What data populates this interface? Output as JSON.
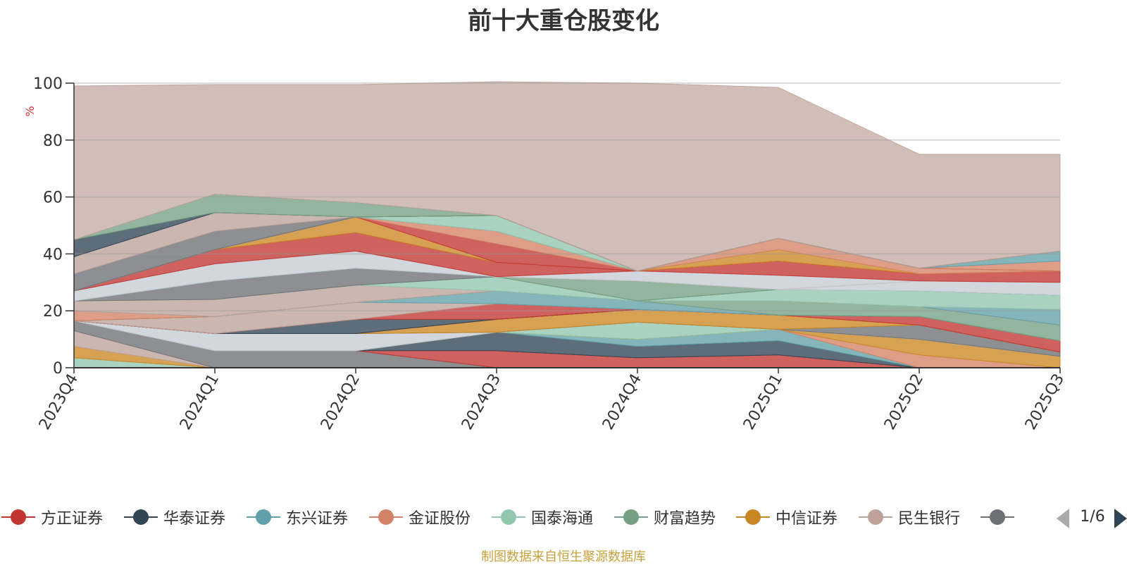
{
  "colors": {
    "方正证券": "#c23531",
    "华泰证券": "#2f4554",
    "东兴证券": "#61a0a8",
    "金证股份": "#d48265",
    "国泰海通": "#91c7ae",
    "财富趋势": "#749f83",
    "中信证券": "#ca8622",
    "民生银行": "#bda29a",
    "其他": "#6e7074",
    "light": "#c4ccd3"
  },
  "legend_pager": {
    "text": "1/6"
  },
  "source_note": "制图数据来自恒生聚源数据库",
  "chart_data": {
    "type": "area",
    "stacked": true,
    "title": "前十大重仓股变化",
    "ylabel": "%",
    "ylim": [
      0,
      100
    ],
    "yticks": [
      0,
      20,
      40,
      60,
      80,
      100
    ],
    "categories": [
      "2023Q4",
      "2024Q1",
      "2024Q2",
      "2024Q3",
      "2024Q4",
      "2025Q1",
      "2025Q2",
      "2025Q3"
    ],
    "grid": true,
    "legend_position": "bottom",
    "legend": [
      "方正证券",
      "华泰证券",
      "东兴证券",
      "金证股份",
      "国泰海通",
      "财富趋势",
      "中信证券",
      "民生银行"
    ],
    "series": [
      {
        "color": "国泰海通",
        "values": [
          3.5,
          0,
          0,
          0,
          0,
          0,
          0,
          0
        ]
      },
      {
        "color": "中信证券",
        "values": [
          4.0,
          0,
          0,
          0,
          0,
          0,
          0,
          0
        ]
      },
      {
        "color": "民生银行",
        "values": [
          5.5,
          0,
          0,
          0,
          0,
          0,
          0,
          0
        ]
      },
      {
        "color": "其他",
        "values": [
          3.5,
          6.0,
          6.0,
          0,
          0,
          0,
          0,
          0
        ]
      },
      {
        "color": "方正证券",
        "values": [
          0,
          0,
          0,
          6.0,
          3.5,
          4.5,
          0,
          0
        ]
      },
      {
        "color": "华泰证券",
        "values": [
          0,
          0,
          0,
          6.5,
          4.0,
          5.0,
          0,
          0
        ]
      },
      {
        "color": "东兴证券",
        "values": [
          0,
          0,
          0,
          0,
          2.5,
          4.0,
          0,
          0
        ]
      },
      {
        "color": "金证股份",
        "values": [
          0,
          0,
          0,
          0,
          0,
          0,
          4.5,
          0
        ]
      },
      {
        "color": "中信证券",
        "values": [
          0,
          0,
          0,
          0,
          0,
          0,
          5.5,
          4.0
        ]
      },
      {
        "color": "国泰海通",
        "values": [
          0,
          0,
          0,
          0,
          6.0,
          0,
          0,
          0
        ]
      },
      {
        "color": "light",
        "values": [
          0,
          6.0,
          6.0,
          0,
          0,
          0,
          0,
          0
        ]
      },
      {
        "color": "其他",
        "values": [
          0,
          0,
          0,
          0,
          0,
          0,
          5.0,
          1.5
        ]
      },
      {
        "color": "中信证券",
        "values": [
          0,
          0,
          0,
          4.5,
          4.5,
          5.0,
          0,
          0
        ]
      },
      {
        "color": "方正证券",
        "values": [
          0,
          0,
          0,
          0,
          0,
          0,
          3.0,
          4.0
        ]
      },
      {
        "color": "华泰证券",
        "values": [
          0,
          0,
          5.0,
          0,
          0,
          0,
          0,
          0
        ]
      },
      {
        "color": "方正证券",
        "values": [
          0,
          0,
          0,
          5.5,
          0,
          0,
          0,
          0
        ]
      },
      {
        "color": "民生银行",
        "values": [
          0,
          6.0,
          6.0,
          0,
          0,
          0,
          0,
          0
        ]
      },
      {
        "color": "东兴证券",
        "values": [
          0,
          0,
          0,
          4.5,
          3.0,
          0,
          0,
          0
        ]
      },
      {
        "color": "财富趋势",
        "values": [
          0,
          0,
          0,
          0,
          0,
          5.0,
          3.5,
          5.5
        ]
      },
      {
        "color": "金证股份",
        "values": [
          3.5,
          0,
          0,
          0,
          0,
          0,
          0,
          0
        ]
      },
      {
        "color": "东兴证券",
        "values": [
          0,
          0,
          0,
          0,
          0,
          0,
          0,
          5.5
        ]
      },
      {
        "color": "民生银行",
        "values": [
          3.5,
          6.0,
          6.0,
          0,
          0,
          0,
          0,
          0
        ]
      },
      {
        "color": "国泰海通",
        "values": [
          0,
          0,
          0,
          5.0,
          0,
          4.0,
          5.5,
          5.0
        ]
      },
      {
        "color": "其他",
        "values": [
          0,
          6.5,
          6.0,
          0,
          0,
          0,
          0,
          0
        ]
      },
      {
        "color": "财富趋势",
        "values": [
          0,
          0,
          0,
          0,
          7.0,
          0,
          0,
          0
        ]
      },
      {
        "color": "light",
        "values": [
          3.5,
          6.0,
          6.0,
          0,
          0,
          0,
          3.5,
          4.5
        ]
      },
      {
        "color": "金证股份",
        "values": [
          0,
          0,
          0,
          0,
          0,
          0,
          0,
          0
        ]
      },
      {
        "color": "light",
        "values": [
          0,
          0,
          0,
          0,
          3.5,
          5.0,
          0,
          0
        ]
      },
      {
        "color": "方正证券",
        "values": [
          0,
          5.0,
          6.5,
          5.0,
          0,
          5.0,
          2.5,
          4.0
        ]
      },
      {
        "color": "中信证券",
        "values": [
          0,
          0,
          5.5,
          0,
          0,
          4.0,
          0,
          0
        ]
      },
      {
        "color": "金证股份",
        "values": [
          0,
          0,
          0,
          0,
          0,
          4.0,
          2.0,
          0
        ]
      },
      {
        "color": "方正证券",
        "values": [
          0,
          0,
          0,
          6.5,
          0,
          0,
          0,
          0
        ]
      },
      {
        "color": "金证股份",
        "values": [
          0,
          0,
          0,
          4.5,
          0,
          0,
          0,
          3.5
        ]
      },
      {
        "color": "东兴证券",
        "values": [
          0,
          0,
          0,
          0,
          0,
          0,
          0,
          3.5
        ]
      },
      {
        "color": "国泰海通",
        "values": [
          0,
          0,
          0,
          5.5,
          0,
          0,
          0,
          0
        ]
      },
      {
        "color": "其他",
        "values": [
          6.0,
          6.5,
          0,
          0,
          0,
          0,
          0,
          0
        ]
      },
      {
        "color": "民生银行",
        "values": [
          6.0,
          6.5,
          0,
          0,
          0,
          0,
          0,
          0
        ]
      },
      {
        "color": "华泰证券",
        "values": [
          6.0,
          0,
          0,
          0,
          0,
          0,
          0,
          0
        ]
      },
      {
        "color": "财富趋势",
        "values": [
          0,
          6.5,
          5.0,
          0,
          0,
          0,
          0,
          0
        ]
      },
      {
        "color": "民生银行",
        "values": [
          54.0,
          38.5,
          41.5,
          47.0,
          66.0,
          53.0,
          40.0,
          34.0
        ]
      }
    ]
  }
}
